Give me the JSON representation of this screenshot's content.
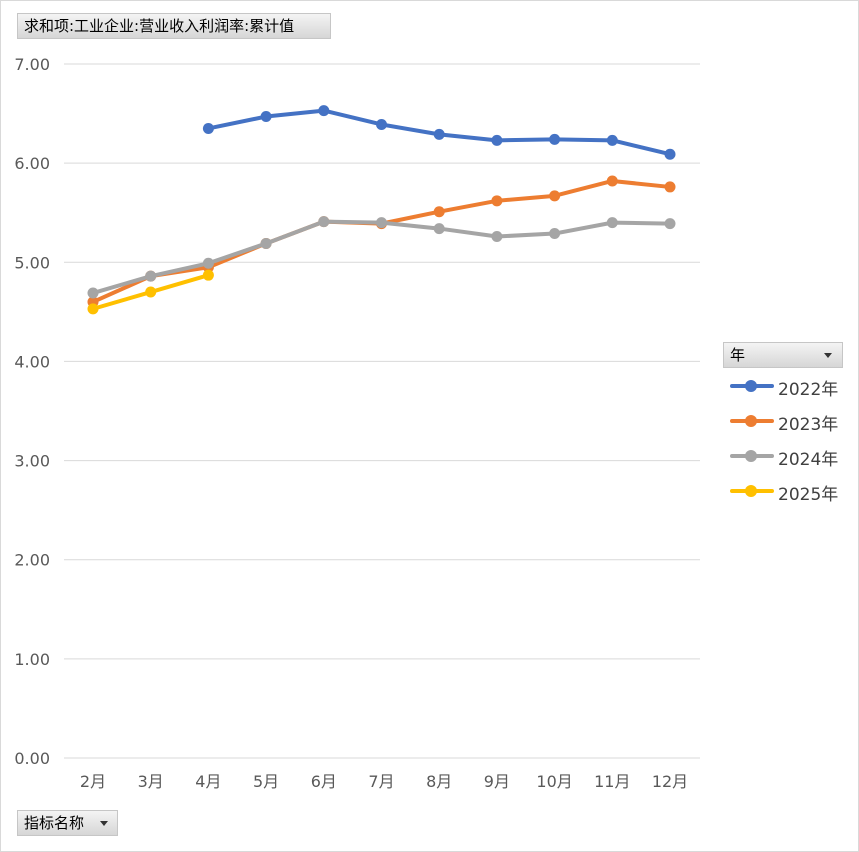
{
  "value_field": {
    "label": "求和项:工业企业:营业收入利润率:累计值"
  },
  "axis_field": {
    "label": "指标名称"
  },
  "legend_field": {
    "label": "年"
  },
  "chart_data": {
    "type": "line",
    "categories": [
      "2月",
      "3月",
      "4月",
      "5月",
      "6月",
      "7月",
      "8月",
      "9月",
      "10月",
      "11月",
      "12月"
    ],
    "ylim": [
      0,
      7
    ],
    "yticks": [
      "0.00",
      "1.00",
      "2.00",
      "3.00",
      "4.00",
      "5.00",
      "6.00",
      "7.00"
    ],
    "grid": true,
    "legend_position": "right",
    "series": [
      {
        "name": "2022年",
        "color": "#4472c4",
        "values": [
          null,
          null,
          6.35,
          6.47,
          6.53,
          6.39,
          6.29,
          6.23,
          6.24,
          6.23,
          6.09
        ]
      },
      {
        "name": "2023年",
        "color": "#ed7d31",
        "values": [
          4.6,
          4.86,
          4.95,
          5.19,
          5.41,
          5.39,
          5.51,
          5.62,
          5.67,
          5.82,
          5.76
        ]
      },
      {
        "name": "2024年",
        "color": "#a5a5a5",
        "values": [
          4.69,
          4.86,
          4.99,
          5.19,
          5.41,
          5.4,
          5.34,
          5.26,
          5.29,
          5.4,
          5.39
        ]
      },
      {
        "name": "2025年",
        "color": "#ffc000",
        "values": [
          4.53,
          4.7,
          4.87,
          null,
          null,
          null,
          null,
          null,
          null,
          null,
          null
        ]
      }
    ]
  }
}
